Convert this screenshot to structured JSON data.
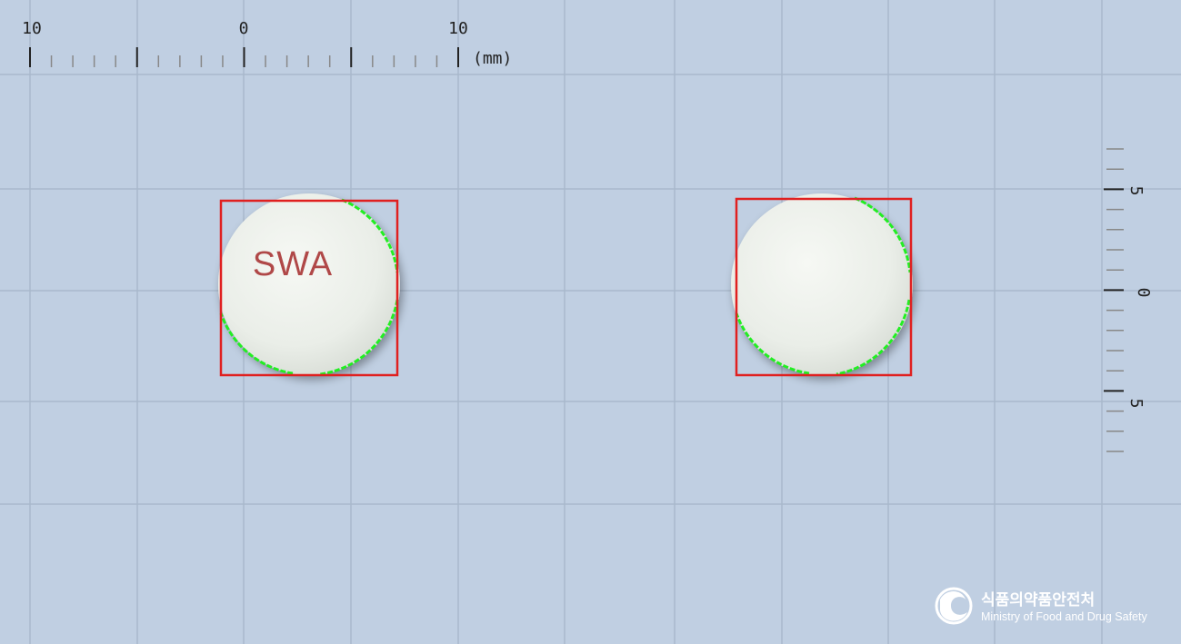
{
  "ruler_horizontal": {
    "labels": [
      "10",
      "0",
      "10"
    ],
    "unit": "(mm)"
  },
  "ruler_vertical": {
    "labels": [
      "5",
      "0",
      "5"
    ]
  },
  "pill_front": {
    "imprint": "SWA",
    "color": "#eef1ec",
    "imprint_color": "#b04848"
  },
  "pill_back": {
    "imprint": "",
    "color": "#eef1ec"
  },
  "overlay_colors": {
    "bounding_box": "#e02020",
    "contour": "#22ee22"
  },
  "logo": {
    "name_korean": "식품의약품안전처",
    "name_english": "Ministry of Food and Drug Safety"
  }
}
